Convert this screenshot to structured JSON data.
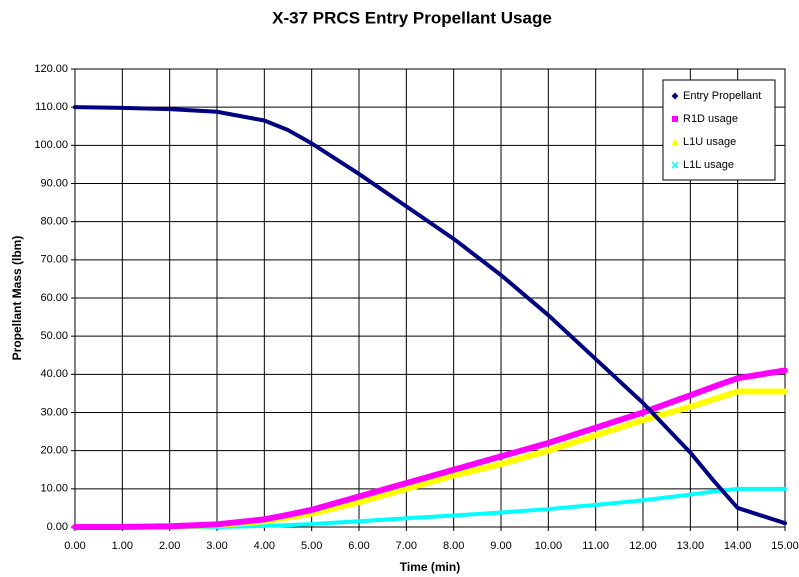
{
  "chart_data": {
    "type": "line",
    "title": "X-37 PRCS Entry Propellant Usage",
    "xlabel": "Time (min)",
    "ylabel": "Propellant Mass (lbm)",
    "x": [
      0,
      1,
      2,
      3,
      4,
      4.5,
      5,
      6,
      7,
      8,
      9,
      10,
      11,
      12,
      13,
      13.5,
      14,
      15
    ],
    "series": [
      {
        "name": "Entry Propellant",
        "color": "#000080",
        "values": [
          110,
          109.8,
          109.5,
          108.8,
          106.5,
          104,
          100.5,
          92.5,
          84,
          75.5,
          66,
          55.5,
          44,
          32.5,
          19.5,
          12,
          5,
          1
        ]
      },
      {
        "name": "R1D usage",
        "color": "#ff00ff",
        "values": [
          0,
          0,
          0.2,
          0.7,
          2,
          3.2,
          4.5,
          8,
          11.5,
          15,
          18.5,
          22,
          26,
          30,
          34.5,
          36.8,
          39,
          41
        ]
      },
      {
        "name": "L1U usage",
        "color": "#ffff00",
        "values": [
          0,
          0,
          0.2,
          0.5,
          1.5,
          2.5,
          3.5,
          6.5,
          10,
          13.5,
          16.5,
          20,
          24,
          28,
          31.5,
          33.5,
          35.5,
          35.5
        ]
      },
      {
        "name": "L1L usage",
        "color": "#00ffff",
        "values": [
          0,
          0,
          0,
          0,
          0.3,
          0.5,
          0.8,
          1.5,
          2.3,
          3,
          3.8,
          4.7,
          5.8,
          7,
          8.5,
          9.3,
          10,
          10
        ]
      }
    ],
    "xlim": [
      0,
      15
    ],
    "ylim": [
      0,
      120
    ],
    "xticks": [
      {
        "value": 0,
        "label": "0.00"
      },
      {
        "value": 1,
        "label": "1.00"
      },
      {
        "value": 2,
        "label": "2.00"
      },
      {
        "value": 3,
        "label": "3.00"
      },
      {
        "value": 4,
        "label": "4.00"
      },
      {
        "value": 5,
        "label": "5.00"
      },
      {
        "value": 6,
        "label": "6.00"
      },
      {
        "value": 7,
        "label": "7.00"
      },
      {
        "value": 8,
        "label": "8.00"
      },
      {
        "value": 9,
        "label": "9.00"
      },
      {
        "value": 10,
        "label": "10.00"
      },
      {
        "value": 11,
        "label": "11.00"
      },
      {
        "value": 12,
        "label": "12.00"
      },
      {
        "value": 13,
        "label": "13.00"
      },
      {
        "value": 14,
        "label": "14.00"
      },
      {
        "value": 15,
        "label": "15.00"
      }
    ],
    "yticks": [
      {
        "value": 0,
        "label": "0.00"
      },
      {
        "value": 10,
        "label": "10.00"
      },
      {
        "value": 20,
        "label": "20.00"
      },
      {
        "value": 30,
        "label": "30.00"
      },
      {
        "value": 40,
        "label": "40.00"
      },
      {
        "value": 50,
        "label": "50.00"
      },
      {
        "value": 60,
        "label": "60.00"
      },
      {
        "value": 70,
        "label": "70.00"
      },
      {
        "value": 80,
        "label": "80.00"
      },
      {
        "value": 90,
        "label": "90.00"
      },
      {
        "value": 100,
        "label": "100.00"
      },
      {
        "value": 110,
        "label": "110.00"
      },
      {
        "value": 120,
        "label": "120.00"
      }
    ],
    "grid": true,
    "legend": "upper right"
  }
}
